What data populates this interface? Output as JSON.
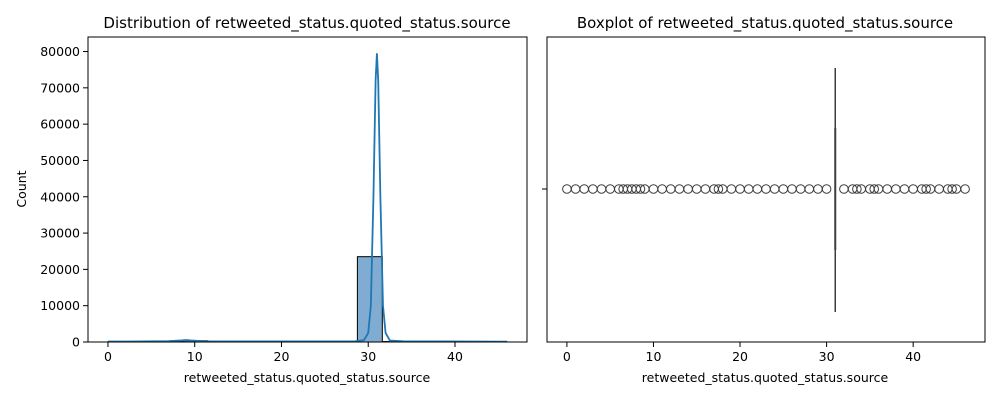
{
  "chart_data": [
    {
      "type": "histogram",
      "title": "Distribution of retweeted_status.quoted_status.source",
      "xlabel": "retweeted_status.quoted_status.source",
      "ylabel": "Count",
      "xlim": [
        -2.3,
        48.3
      ],
      "ylim": [
        0,
        84000
      ],
      "xticks": [
        0,
        10,
        20,
        30,
        40
      ],
      "yticks": [
        0,
        10000,
        20000,
        30000,
        40000,
        50000,
        60000,
        70000,
        80000
      ],
      "bin_width": 2.875,
      "bins": [
        {
          "x0": 0,
          "x1": 2.875,
          "count": 40
        },
        {
          "x0": 2.875,
          "x1": 5.75,
          "count": 30
        },
        {
          "x0": 5.75,
          "x1": 8.625,
          "count": 120
        },
        {
          "x0": 8.625,
          "x1": 11.5,
          "count": 350
        },
        {
          "x0": 11.5,
          "x1": 14.375,
          "count": 40
        },
        {
          "x0": 14.375,
          "x1": 17.25,
          "count": 40
        },
        {
          "x0": 17.25,
          "x1": 20.125,
          "count": 100
        },
        {
          "x0": 20.125,
          "x1": 23.0,
          "count": 60
        },
        {
          "x0": 23.0,
          "x1": 25.875,
          "count": 40
        },
        {
          "x0": 25.875,
          "x1": 28.75,
          "count": 80
        },
        {
          "x0": 28.75,
          "x1": 31.625,
          "count": 23500
        },
        {
          "x0": 31.625,
          "x1": 34.5,
          "count": 120
        },
        {
          "x0": 34.5,
          "x1": 37.375,
          "count": 60
        },
        {
          "x0": 37.375,
          "x1": 40.25,
          "count": 40
        },
        {
          "x0": 40.25,
          "x1": 43.125,
          "count": 60
        },
        {
          "x0": 43.125,
          "x1": 46.0,
          "count": 40
        }
      ],
      "kde": [
        [
          0,
          120
        ],
        [
          4,
          150
        ],
        [
          7,
          250
        ],
        [
          8.5,
          450
        ],
        [
          9,
          560
        ],
        [
          9.5,
          450
        ],
        [
          11,
          200
        ],
        [
          14,
          150
        ],
        [
          18,
          180
        ],
        [
          22,
          160
        ],
        [
          26,
          150
        ],
        [
          28.5,
          200
        ],
        [
          29.5,
          500
        ],
        [
          30,
          2500
        ],
        [
          30.3,
          10000
        ],
        [
          30.6,
          40000
        ],
        [
          30.85,
          72000
        ],
        [
          31.0,
          79500
        ],
        [
          31.15,
          72000
        ],
        [
          31.4,
          40000
        ],
        [
          31.7,
          10000
        ],
        [
          32,
          2500
        ],
        [
          32.5,
          400
        ],
        [
          34,
          200
        ],
        [
          38,
          150
        ],
        [
          42,
          120
        ],
        [
          46,
          100
        ]
      ],
      "bar_color": "#7facd0",
      "line_color": "#1f77b4"
    },
    {
      "type": "boxplot",
      "title": "Boxplot of retweeted_status.quoted_status.source",
      "xlabel": "retweeted_status.quoted_status.source",
      "xlim": [
        -2.3,
        48.3
      ],
      "xticks": [
        0,
        10,
        20,
        30,
        40
      ],
      "median": 31,
      "q1": 31,
      "q3": 31,
      "whisker_low": 31,
      "whisker_high": 31,
      "outliers": [
        0,
        1,
        2,
        3,
        4,
        5,
        6,
        6.5,
        7,
        7.5,
        8,
        8.5,
        9,
        10,
        11,
        12,
        13,
        14,
        15,
        16,
        17,
        17.5,
        18,
        19,
        20,
        21,
        22,
        23,
        24,
        25,
        26,
        27,
        28,
        29,
        30,
        32,
        33,
        33.5,
        34,
        35,
        35.5,
        36,
        37,
        38,
        39,
        40,
        41,
        41.5,
        42,
        43,
        44,
        44.5,
        45,
        46
      ],
      "color": "#3d3d3d"
    }
  ]
}
